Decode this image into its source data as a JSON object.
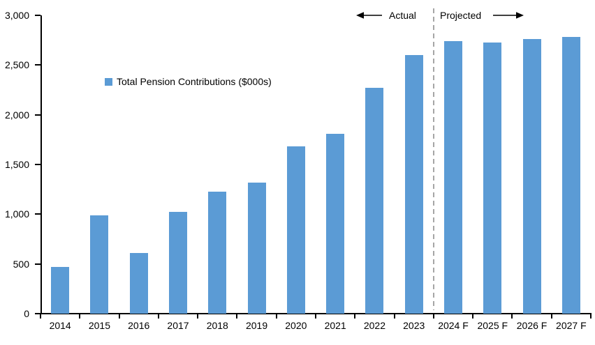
{
  "chart_data": {
    "type": "bar",
    "title": "",
    "categories": [
      "2014",
      "2015",
      "2016",
      "2017",
      "2018",
      "2019",
      "2020",
      "2021",
      "2022",
      "2023",
      "2024 F",
      "2025 F",
      "2026 F",
      "2027 F"
    ],
    "series": [
      {
        "name": "Total Pension Contributions ($000s)",
        "values": [
          470,
          990,
          610,
          1020,
          1230,
          1320,
          1680,
          1810,
          2270,
          2600,
          2740,
          2730,
          2760,
          2780
        ]
      }
    ],
    "xlabel": "",
    "ylabel": "",
    "ylim": [
      0,
      3000
    ],
    "yticks": [
      {
        "value": 0,
        "label": "0"
      },
      {
        "value": 500,
        "label": "500"
      },
      {
        "value": 1000,
        "label": "1,000"
      },
      {
        "value": 1500,
        "label": "1,500"
      },
      {
        "value": 2000,
        "label": "2,000"
      },
      {
        "value": 2500,
        "label": "2,500"
      },
      {
        "value": 3000,
        "label": "3,000"
      }
    ],
    "grid": false,
    "legend_position": "inside-upper-left",
    "divider": {
      "after_category": "2023",
      "boundary_index": 10,
      "style": "dashed",
      "color": "#A6A6A6"
    },
    "annotations": {
      "left": {
        "text": "Actual",
        "arrow_direction": "left"
      },
      "right": {
        "text": "Projected",
        "arrow_direction": "right"
      }
    },
    "colors": {
      "bar": "#5B9BD5",
      "axis": "#000000",
      "text": "#000000"
    }
  }
}
